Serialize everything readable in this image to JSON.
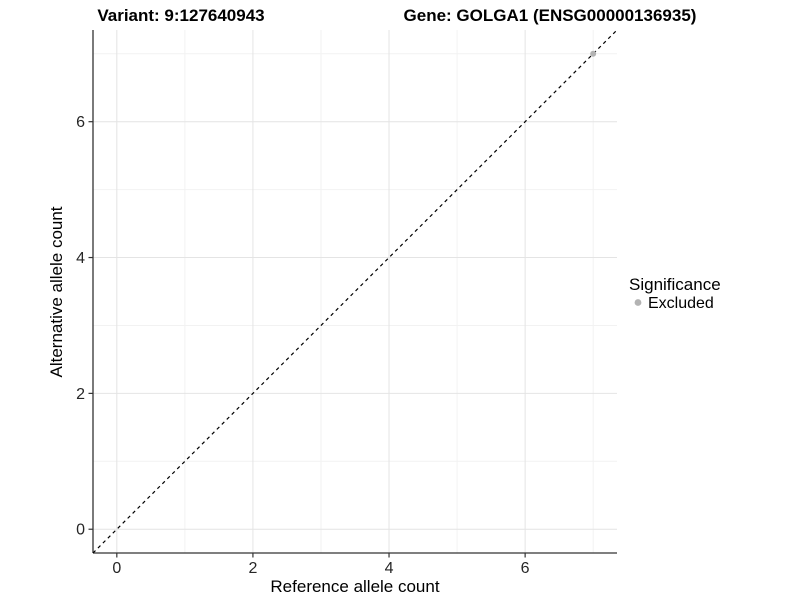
{
  "chart_data": {
    "type": "scatter",
    "titles": {
      "left": "Variant: 9:127640943",
      "right": "Gene: GOLGA1 (ENSG00000136935)"
    },
    "xlabel": "Reference allele count",
    "ylabel": "Alternative allele count",
    "xlim": [
      -0.35,
      7.35
    ],
    "ylim": [
      -0.35,
      7.35
    ],
    "x_ticks": [
      0,
      2,
      4,
      6
    ],
    "y_ticks": [
      0,
      2,
      4,
      6
    ],
    "x_minor_grid": [
      1,
      3,
      5,
      7
    ],
    "y_minor_grid": [
      1,
      3,
      5,
      7
    ],
    "grid": "on",
    "reference_line": {
      "slope": 1,
      "intercept": 0,
      "style": "dashed",
      "color": "#000000"
    },
    "series": [
      {
        "name": "Excluded",
        "marker": "circle",
        "color": "#b3b3b3",
        "points": [
          [
            7,
            7
          ]
        ]
      }
    ],
    "legend": {
      "title": "Significance",
      "position": "right",
      "entries": [
        {
          "label": "Excluded",
          "color": "#b3b3b3"
        }
      ]
    },
    "style": {
      "background": "#ffffff",
      "grid_major_color": "#e4e4e4",
      "grid_minor_color": "#f2f2f2",
      "axis_line_color": "#333333",
      "tick_color": "#333333"
    }
  }
}
